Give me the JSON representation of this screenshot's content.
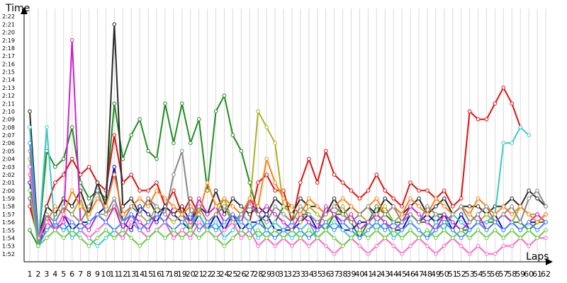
{
  "chart_data": {
    "type": "line",
    "ylabel": "Time",
    "xlabel": "Laps",
    "x_ticks": [
      "1",
      "2",
      "3",
      "4",
      "5",
      "6",
      "7",
      "8",
      "9",
      "10",
      "11",
      "12",
      "13",
      "14",
      "15",
      "16",
      "17",
      "18",
      "19",
      "20",
      "21",
      "22",
      "23",
      "24",
      "25",
      "26",
      "27",
      "28",
      "29",
      "30",
      "31",
      "32",
      "33",
      "34",
      "35",
      "36",
      "37",
      "38",
      "39",
      "40",
      "41",
      "42",
      "43",
      "44",
      "45",
      "46",
      "47",
      "48",
      "49",
      "50",
      "51",
      "52",
      "53",
      "54",
      "55",
      "56",
      "57",
      "58",
      "59",
      "60",
      "61",
      "62"
    ],
    "y_ticks": [
      "1:52",
      "1:53",
      "1:54",
      "1:55",
      "1:56",
      "1:57",
      "1:58",
      "1:59",
      "2:00",
      "2:01",
      "2:02",
      "2:03",
      "2:04",
      "2:05",
      "2:06",
      "2:07",
      "2:08",
      "2:09",
      "2:10",
      "2:11",
      "2:12",
      "2:13",
      "2:14",
      "2:15",
      "2:16",
      "2:17",
      "2:18",
      "2:19",
      "2:20",
      "2:21",
      "2:22"
    ],
    "y_unit": "seconds",
    "ylim": [
      111,
      143
    ],
    "xlim": [
      1,
      62
    ],
    "grid": "vertical",
    "series": [
      {
        "color": "#228b22",
        "values": [
          115,
          113,
          125,
          123,
          124,
          128,
          121,
          119,
          120,
          119,
          131,
          124,
          127,
          129,
          125,
          124,
          131,
          126,
          131,
          126,
          129,
          120,
          130,
          132,
          127,
          125,
          121,
          117,
          115,
          116,
          118,
          118,
          117,
          117,
          116,
          115,
          117,
          117,
          116,
          114,
          116,
          118,
          117,
          116,
          116,
          117,
          116,
          116,
          117,
          117,
          116,
          115,
          115,
          116,
          116,
          116,
          117,
          116,
          116,
          115,
          116,
          116
        ]
      },
      {
        "color": "#e01010",
        "values": [
          118,
          114,
          118,
          121,
          122,
          124,
          122,
          123,
          121,
          120,
          127,
          121,
          122,
          120,
          120,
          121,
          118,
          120,
          117,
          119,
          117,
          115,
          117,
          118,
          116,
          117,
          116,
          121,
          122,
          120,
          120,
          116,
          121,
          124,
          121,
          125,
          122,
          121,
          120,
          119,
          120,
          122,
          120,
          119,
          118,
          121,
          120,
          120,
          119,
          120,
          118,
          119,
          130,
          129,
          129,
          131,
          133,
          131,
          128,
          null,
          null,
          null
        ]
      },
      {
        "color": "#1010c0",
        "values": [
          121,
          113,
          116,
          115,
          117,
          115,
          116,
          116,
          117,
          118,
          123,
          116,
          115,
          118,
          117,
          116,
          118,
          117,
          116,
          115,
          117,
          115,
          117,
          115,
          117,
          115,
          116,
          116,
          117,
          115,
          115,
          115,
          116,
          117,
          115,
          116,
          117,
          115,
          115,
          116,
          116,
          115,
          116,
          115,
          115,
          117,
          116,
          117,
          116,
          117,
          115,
          117,
          115,
          116,
          116,
          117,
          115,
          116,
          115,
          116,
          116,
          117
        ]
      },
      {
        "color": "#2a2a2a",
        "values": [
          130,
          114,
          118,
          117,
          119,
          118,
          120,
          117,
          121,
          118,
          141,
          118,
          119,
          117,
          119,
          117,
          118,
          117,
          118,
          116,
          118,
          117,
          120,
          117,
          119,
          118,
          117,
          118,
          117,
          119,
          118,
          117,
          119,
          118,
          118,
          117,
          119,
          117,
          118,
          117,
          118,
          117,
          119,
          118,
          117,
          118,
          119,
          117,
          118,
          119,
          117,
          118,
          118,
          118,
          117,
          118,
          118,
          119,
          118,
          120,
          119,
          118
        ]
      },
      {
        "color": "#b0b020",
        "values": [
          124,
          114,
          115,
          116,
          118,
          117,
          119,
          116,
          117,
          117,
          118,
          116,
          118,
          117,
          116,
          118,
          117,
          116,
          117,
          115,
          118,
          116,
          117,
          119,
          116,
          117,
          118,
          130,
          128,
          126,
          118,
          117,
          116,
          118,
          117,
          116,
          117,
          118,
          116,
          117,
          116,
          117,
          118,
          116,
          117,
          117,
          116,
          118,
          117,
          116,
          117,
          118,
          117,
          116,
          117,
          116,
          117,
          116,
          118,
          117,
          117,
          116
        ]
      },
      {
        "color": "#3cc8c8",
        "values": [
          128,
          113,
          128,
          115,
          116,
          114,
          115,
          114,
          113,
          114,
          115,
          114,
          116,
          115,
          114,
          115,
          116,
          114,
          115,
          116,
          117,
          115,
          116,
          114,
          115,
          117,
          116,
          114,
          115,
          116,
          115,
          114,
          115,
          116,
          114,
          115,
          116,
          115,
          114,
          115,
          116,
          115,
          116,
          114,
          115,
          116,
          115,
          114,
          116,
          115,
          117,
          116,
          115,
          116,
          116,
          117,
          126,
          126,
          128,
          127,
          null,
          null
        ]
      },
      {
        "color": "#cc22cc",
        "values": [
          119,
          114,
          117,
          115,
          116,
          139,
          116,
          115,
          117,
          116,
          118,
          115,
          117,
          116,
          115,
          117,
          116,
          118,
          117,
          116,
          119,
          117,
          118,
          116,
          117,
          116,
          119,
          117,
          118,
          117,
          116,
          115,
          117,
          116,
          115,
          118,
          117,
          116,
          117,
          115,
          116,
          117,
          116,
          115,
          116,
          118,
          117,
          116,
          115,
          117,
          116,
          115,
          116,
          117,
          115,
          116,
          117,
          116,
          115,
          116,
          117,
          116
        ]
      },
      {
        "color": "#ff7f0e",
        "values": [
          125,
          114,
          116,
          118,
          117,
          120,
          118,
          117,
          119,
          118,
          122,
          117,
          118,
          119,
          118,
          120,
          119,
          118,
          117,
          118,
          117,
          121,
          118,
          119,
          118,
          117,
          119,
          118,
          124,
          121,
          119,
          118,
          117,
          119,
          118,
          117,
          118,
          119,
          118,
          117,
          118,
          119,
          117,
          118,
          117,
          119,
          118,
          117,
          119,
          118,
          117,
          118,
          117,
          119,
          118,
          117,
          118,
          117,
          118,
          117,
          116,
          117
        ]
      },
      {
        "color": "#888888",
        "values": [
          122,
          113,
          117,
          116,
          118,
          117,
          116,
          118,
          120,
          117,
          119,
          116,
          118,
          117,
          119,
          118,
          117,
          122,
          125,
          117,
          118,
          116,
          117,
          118,
          116,
          117,
          118,
          117,
          116,
          118,
          117,
          116,
          118,
          117,
          116,
          117,
          118,
          117,
          116,
          117,
          118,
          116,
          117,
          118,
          116,
          117,
          116,
          118,
          117,
          116,
          117,
          118,
          116,
          117,
          118,
          116,
          117,
          118,
          116,
          119,
          120,
          118
        ]
      },
      {
        "color": "#ff66cc",
        "values": [
          123,
          114,
          116,
          115,
          117,
          116,
          115,
          114,
          115,
          116,
          115,
          114,
          116,
          115,
          114,
          115,
          116,
          114,
          115,
          114,
          116,
          115,
          114,
          115,
          116,
          114,
          115,
          113,
          114,
          113,
          114,
          113,
          114,
          113,
          114,
          113,
          112,
          113,
          114,
          113,
          112,
          113,
          114,
          113,
          112,
          113,
          114,
          113,
          112,
          113,
          114,
          113,
          112,
          113,
          112,
          112,
          113,
          113,
          114,
          113,
          114,
          114
        ]
      },
      {
        "color": "#4488ff",
        "values": [
          126,
          113,
          115,
          116,
          115,
          116,
          115,
          116,
          117,
          116,
          115,
          116,
          117,
          115,
          116,
          117,
          116,
          115,
          116,
          117,
          115,
          116,
          115,
          116,
          117,
          116,
          115,
          116,
          115,
          114,
          115,
          116,
          115,
          114,
          115,
          116,
          115,
          116,
          115,
          114,
          115,
          116,
          115,
          116,
          115,
          116,
          115,
          114,
          115,
          116,
          115,
          114,
          115,
          116,
          115,
          116,
          115,
          116,
          115,
          116,
          115,
          116
        ]
      },
      {
        "color": "#66cc44",
        "values": [
          120,
          113,
          114,
          115,
          114,
          115,
          114,
          113,
          114,
          115,
          114,
          115,
          114,
          113,
          114,
          115,
          114,
          115,
          114,
          115,
          114,
          115,
          114,
          113,
          114,
          115,
          114,
          115,
          114,
          115,
          114,
          115,
          114,
          115,
          114,
          115,
          114,
          113,
          114,
          115,
          114,
          115,
          114,
          115,
          114,
          115,
          114,
          115,
          114,
          115,
          114,
          115,
          114,
          115,
          114,
          115,
          114,
          115,
          114,
          115,
          114,
          115
        ]
      }
    ]
  }
}
